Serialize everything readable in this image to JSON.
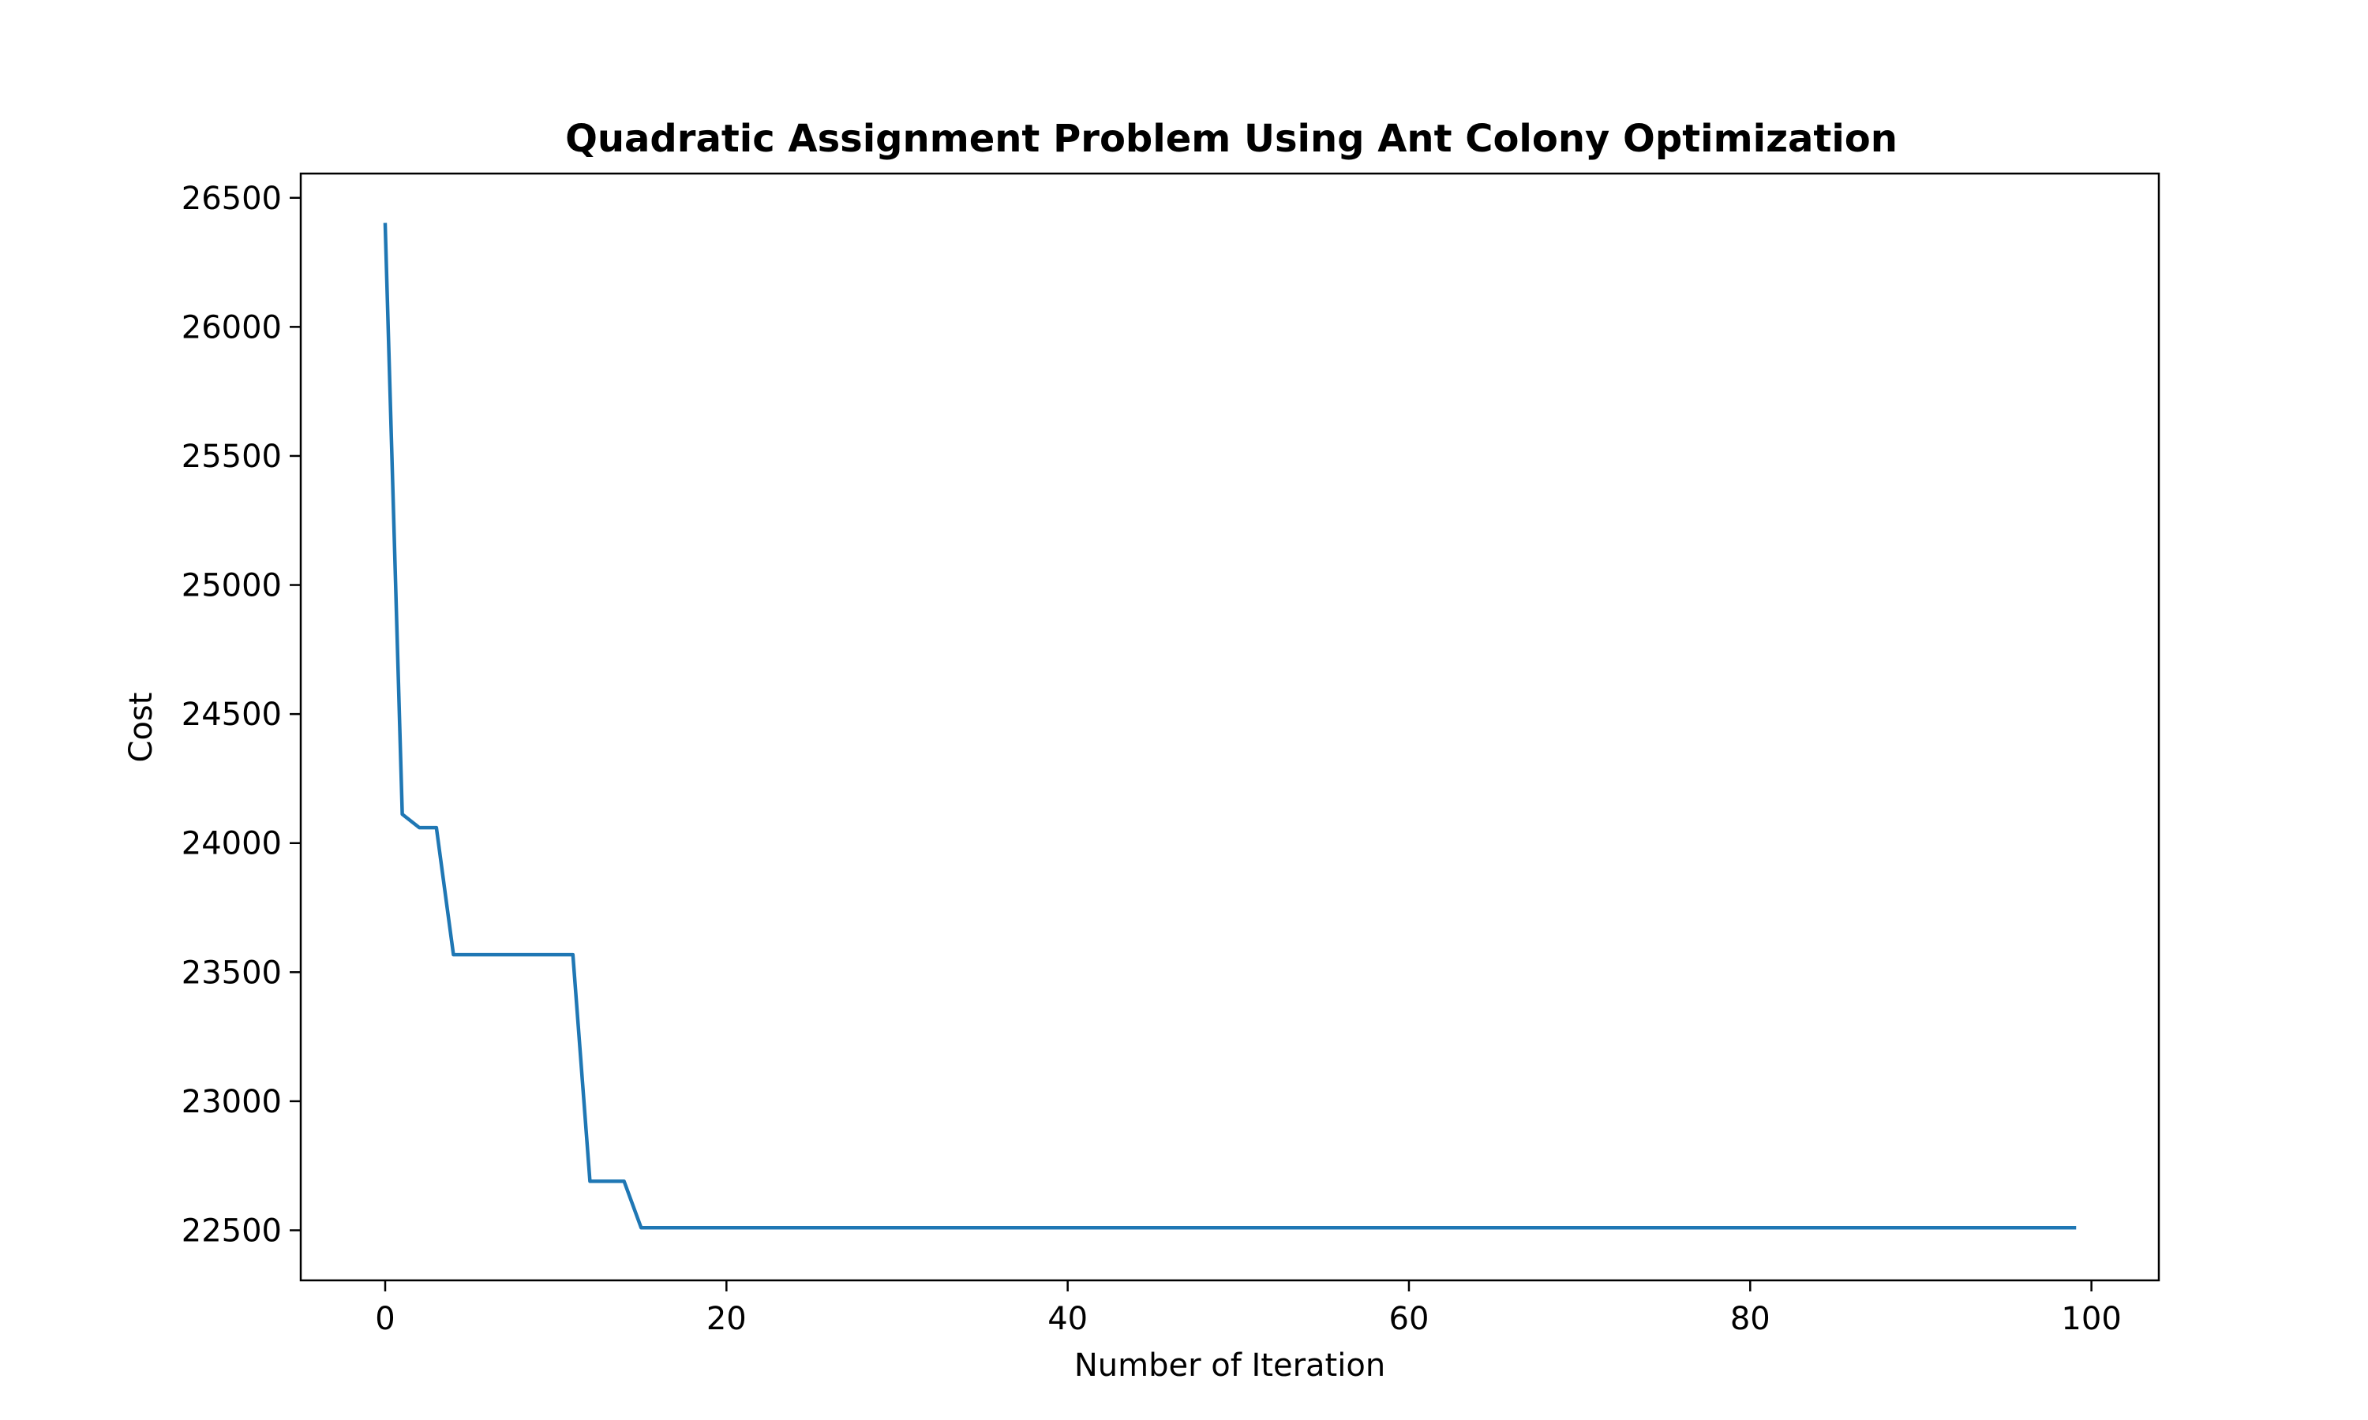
{
  "chart_data": {
    "type": "line",
    "title": "Quadratic Assignment Problem Using Ant Colony Optimization",
    "xlabel": "Number of Iteration",
    "ylabel": "Cost",
    "xlim": [
      -4.95,
      103.95
    ],
    "ylim": [
      22306,
      26594
    ],
    "xticks": [
      0,
      20,
      40,
      60,
      80,
      100
    ],
    "yticks": [
      22500,
      23000,
      23500,
      24000,
      24500,
      25000,
      25500,
      26000,
      26500
    ],
    "grid": false,
    "legend": "none",
    "series": [
      {
        "color": "#1f77b4",
        "segments": [
          {
            "from": 0,
            "to": 0,
            "value": 26396
          },
          {
            "from": 1,
            "to": 1,
            "value": 24112
          },
          {
            "from": 2,
            "to": 3,
            "value": 24060
          },
          {
            "from": 4,
            "to": 11,
            "value": 23568
          },
          {
            "from": 12,
            "to": 14,
            "value": 22690
          },
          {
            "from": 15,
            "to": 99,
            "value": 22510
          }
        ]
      }
    ]
  }
}
